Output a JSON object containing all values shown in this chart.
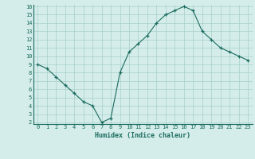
{
  "x": [
    0,
    1,
    2,
    3,
    4,
    5,
    6,
    7,
    8,
    9,
    10,
    11,
    12,
    13,
    14,
    15,
    16,
    17,
    18,
    19,
    20,
    21,
    22,
    23
  ],
  "y": [
    9.0,
    8.5,
    7.5,
    6.5,
    5.5,
    4.5,
    4.0,
    2.0,
    2.5,
    8.0,
    10.5,
    11.5,
    12.5,
    14.0,
    15.0,
    15.5,
    16.0,
    15.5,
    13.0,
    12.0,
    11.0,
    10.5,
    10.0,
    9.5
  ],
  "xlabel": "Humidex (Indice chaleur)",
  "ylim": [
    2,
    16
  ],
  "xlim": [
    -0.5,
    23.5
  ],
  "yticks": [
    2,
    3,
    4,
    5,
    6,
    7,
    8,
    9,
    10,
    11,
    12,
    13,
    14,
    15,
    16
  ],
  "xticks": [
    0,
    1,
    2,
    3,
    4,
    5,
    6,
    7,
    8,
    9,
    10,
    11,
    12,
    13,
    14,
    15,
    16,
    17,
    18,
    19,
    20,
    21,
    22,
    23
  ],
  "line_color": "#1a6b5e",
  "marker": "+",
  "bg_color": "#d4edea",
  "grid_color": "#a8cfc9",
  "tick_label_color": "#1a6b5e",
  "xlabel_color": "#1a6b5e",
  "font_family": "monospace",
  "tick_fontsize": 5.0,
  "xlabel_fontsize": 6.0
}
